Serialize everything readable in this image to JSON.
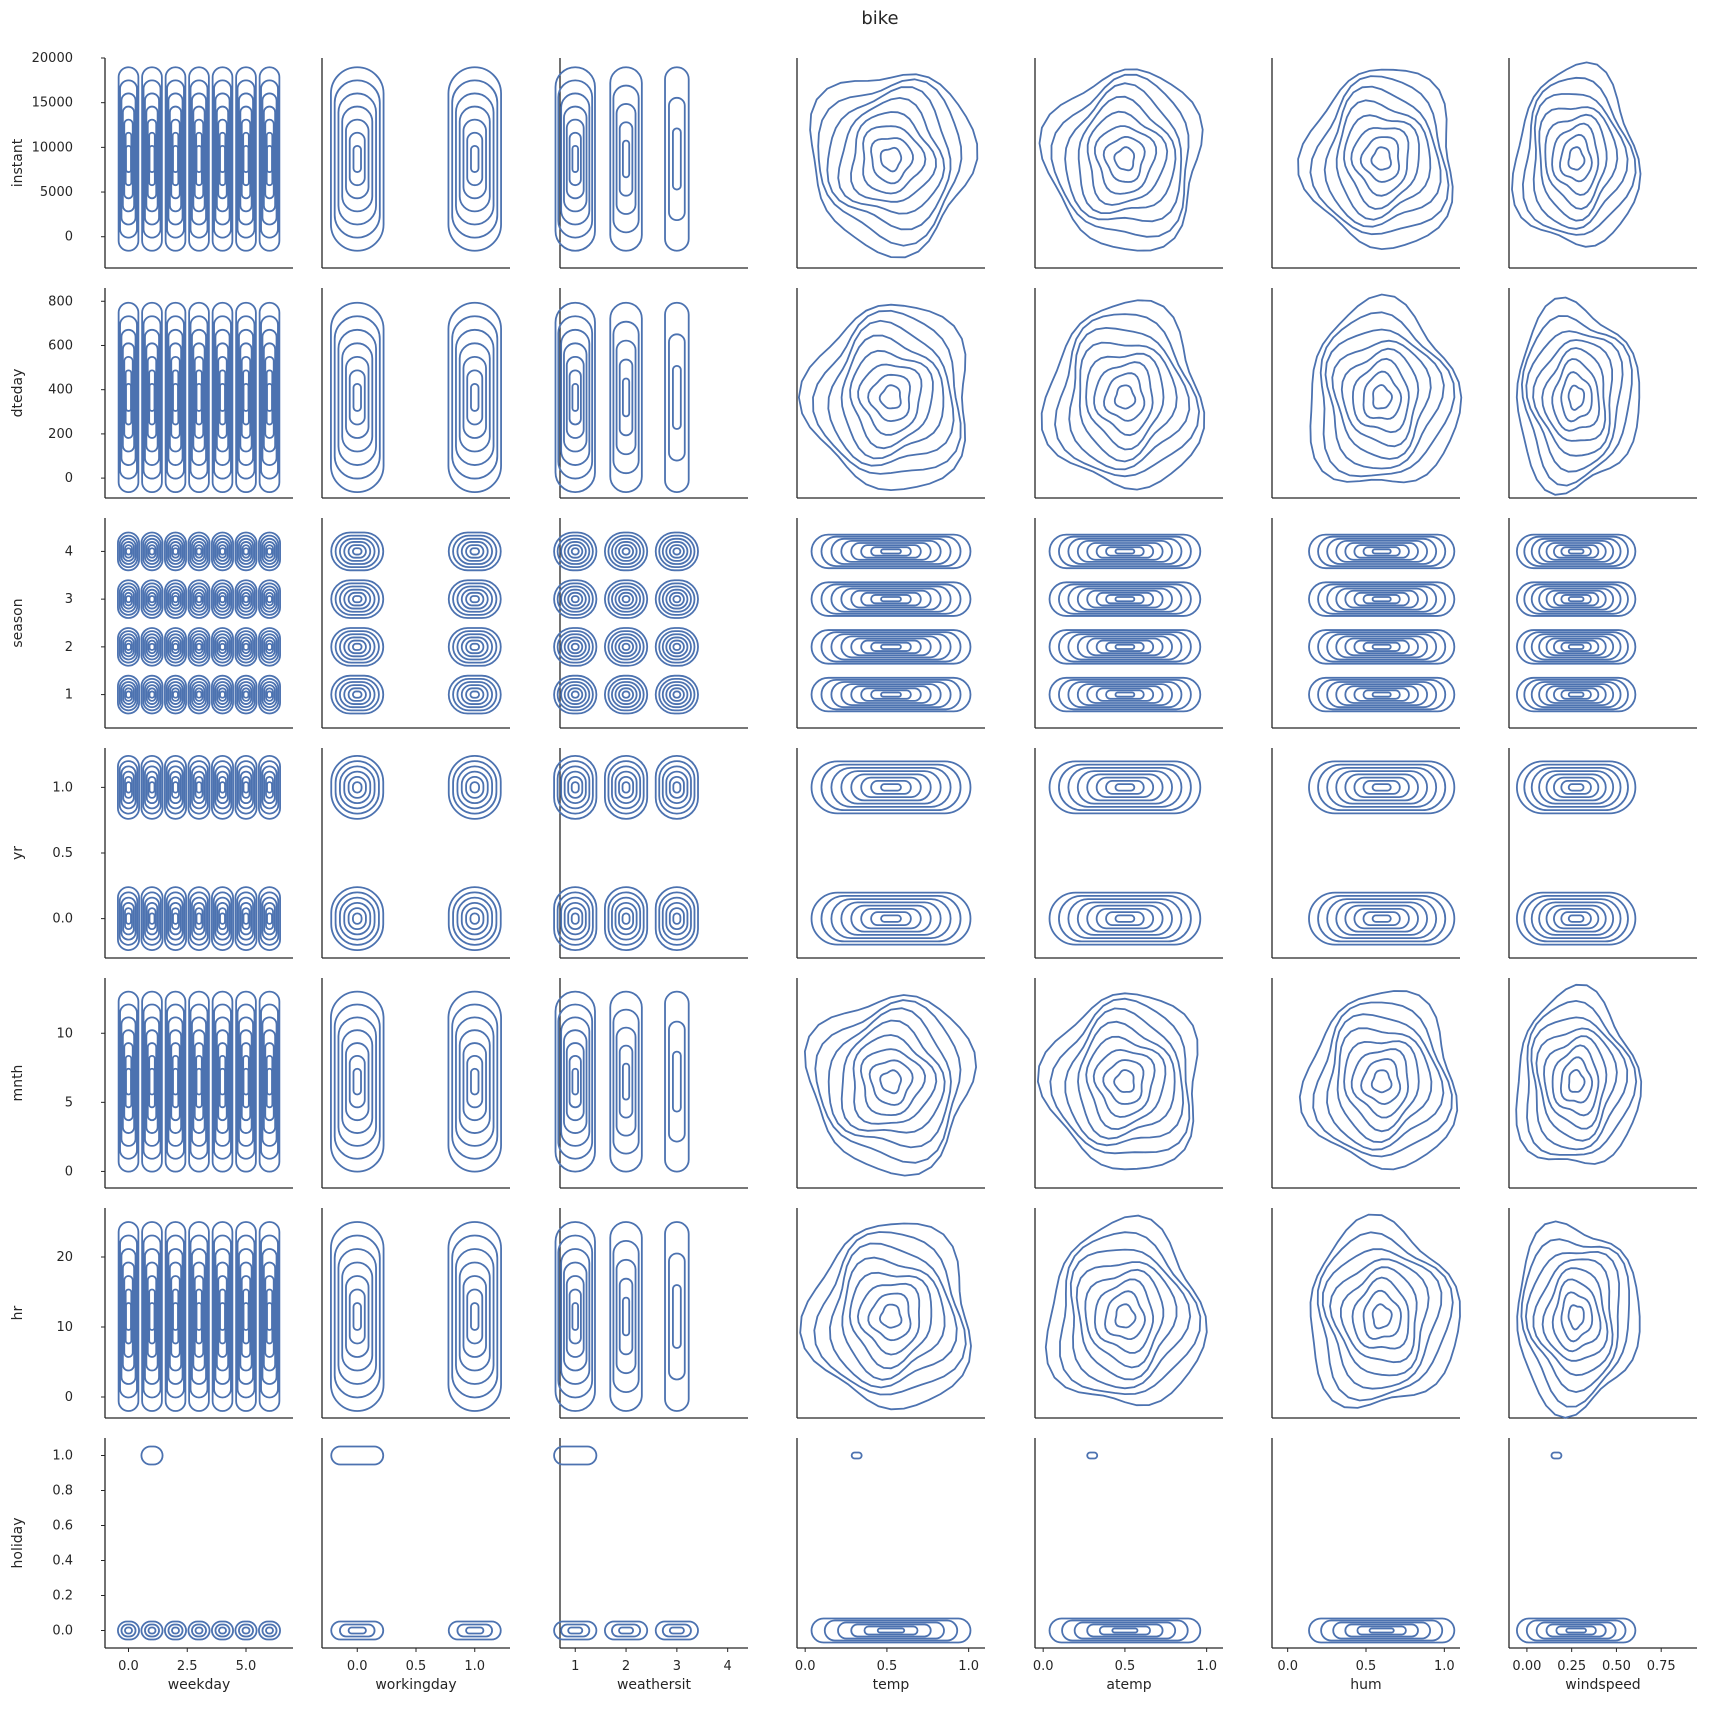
{
  "chart_data": {
    "type": "kde-pairgrid",
    "title": "bike",
    "color": "#4c72b0",
    "grid": false,
    "columns": [
      {
        "label": "weekday",
        "xlim": [
          -1,
          7
        ],
        "ticks": [
          0.0,
          2.5,
          5.0
        ],
        "tick_labels": [
          "0.0",
          "2.5",
          "5.0"
        ],
        "kind": "categorical",
        "levels": [
          0,
          1,
          2,
          3,
          4,
          5,
          6
        ]
      },
      {
        "label": "workingday",
        "xlim": [
          -0.3,
          1.3
        ],
        "ticks": [
          0.0,
          0.5,
          1.0
        ],
        "tick_labels": [
          "0.0",
          "0.5",
          "1.0"
        ],
        "kind": "categorical",
        "levels": [
          0,
          1
        ]
      },
      {
        "label": "weathersit",
        "xlim": [
          0.7,
          4.4
        ],
        "ticks": [
          1,
          2,
          3,
          4
        ],
        "tick_labels": [
          "1",
          "2",
          "3",
          "4"
        ],
        "kind": "categorical",
        "levels": [
          1,
          2,
          3
        ]
      },
      {
        "label": "temp",
        "xlim": [
          -0.05,
          1.1
        ],
        "ticks": [
          0.0,
          0.5,
          1.0
        ],
        "tick_labels": [
          "0.0",
          "0.5",
          "1.0"
        ],
        "kind": "continuous",
        "range": [
          0.1,
          0.95
        ]
      },
      {
        "label": "atemp",
        "xlim": [
          -0.05,
          1.1
        ],
        "ticks": [
          0.0,
          0.5,
          1.0
        ],
        "tick_labels": [
          "0.0",
          "0.5",
          "1.0"
        ],
        "kind": "continuous",
        "range": [
          0.1,
          0.9
        ]
      },
      {
        "label": "hum",
        "xlim": [
          -0.1,
          1.1
        ],
        "ticks": [
          0.0,
          0.5,
          1.0
        ],
        "tick_labels": [
          "0.0",
          "0.5",
          "1.0"
        ],
        "kind": "continuous",
        "range": [
          0.2,
          1.0
        ]
      },
      {
        "label": "windspeed",
        "xlim": [
          -0.1,
          0.95
        ],
        "ticks": [
          0.0,
          0.25,
          0.5,
          0.75
        ],
        "tick_labels": [
          "0.00",
          "0.25",
          "0.50",
          "0.75"
        ],
        "kind": "continuous",
        "range": [
          0.0,
          0.55
        ]
      }
    ],
    "rows": [
      {
        "label": "instant",
        "ylim": [
          -3500,
          20000
        ],
        "ticks": [
          0,
          5000,
          10000,
          15000,
          20000
        ],
        "tick_labels": [
          "0",
          "5000",
          "10000",
          "15000",
          "20000"
        ],
        "kind": "continuous",
        "range": [
          0,
          17400
        ]
      },
      {
        "label": "dteday",
        "ylim": [
          -90,
          860
        ],
        "ticks": [
          0,
          200,
          400,
          600,
          800
        ],
        "tick_labels": [
          "0",
          "200",
          "400",
          "600",
          "800"
        ],
        "kind": "continuous",
        "range": [
          0,
          730
        ]
      },
      {
        "label": "season",
        "ylim": [
          0.3,
          4.7
        ],
        "ticks": [
          1,
          2,
          3,
          4
        ],
        "tick_labels": [
          "1",
          "2",
          "3",
          "4"
        ],
        "kind": "categorical",
        "levels": [
          1,
          2,
          3,
          4
        ]
      },
      {
        "label": "yr",
        "ylim": [
          -0.3,
          1.3
        ],
        "ticks": [
          0.0,
          0.5,
          1.0
        ],
        "tick_labels": [
          "0.0",
          "0.5",
          "1.0"
        ],
        "kind": "categorical",
        "levels": [
          0,
          1
        ]
      },
      {
        "label": "mnth",
        "ylim": [
          -1.2,
          14
        ],
        "ticks": [
          0,
          5,
          10
        ],
        "tick_labels": [
          "0",
          "5",
          "10"
        ],
        "kind": "continuous",
        "range": [
          1,
          12
        ]
      },
      {
        "label": "hr",
        "ylim": [
          -3,
          27
        ],
        "ticks": [
          0,
          10,
          20
        ],
        "tick_labels": [
          "0",
          "10",
          "20"
        ],
        "kind": "continuous",
        "range": [
          0,
          23
        ]
      },
      {
        "label": "holiday",
        "ylim": [
          -0.1,
          1.1
        ],
        "ticks": [
          0.0,
          0.2,
          0.4,
          0.6,
          0.8,
          1.0
        ],
        "tick_labels": [
          "0.0",
          "0.2",
          "0.4",
          "0.6",
          "0.8",
          "1.0"
        ],
        "kind": "categorical",
        "levels": [
          0,
          1
        ]
      }
    ]
  }
}
